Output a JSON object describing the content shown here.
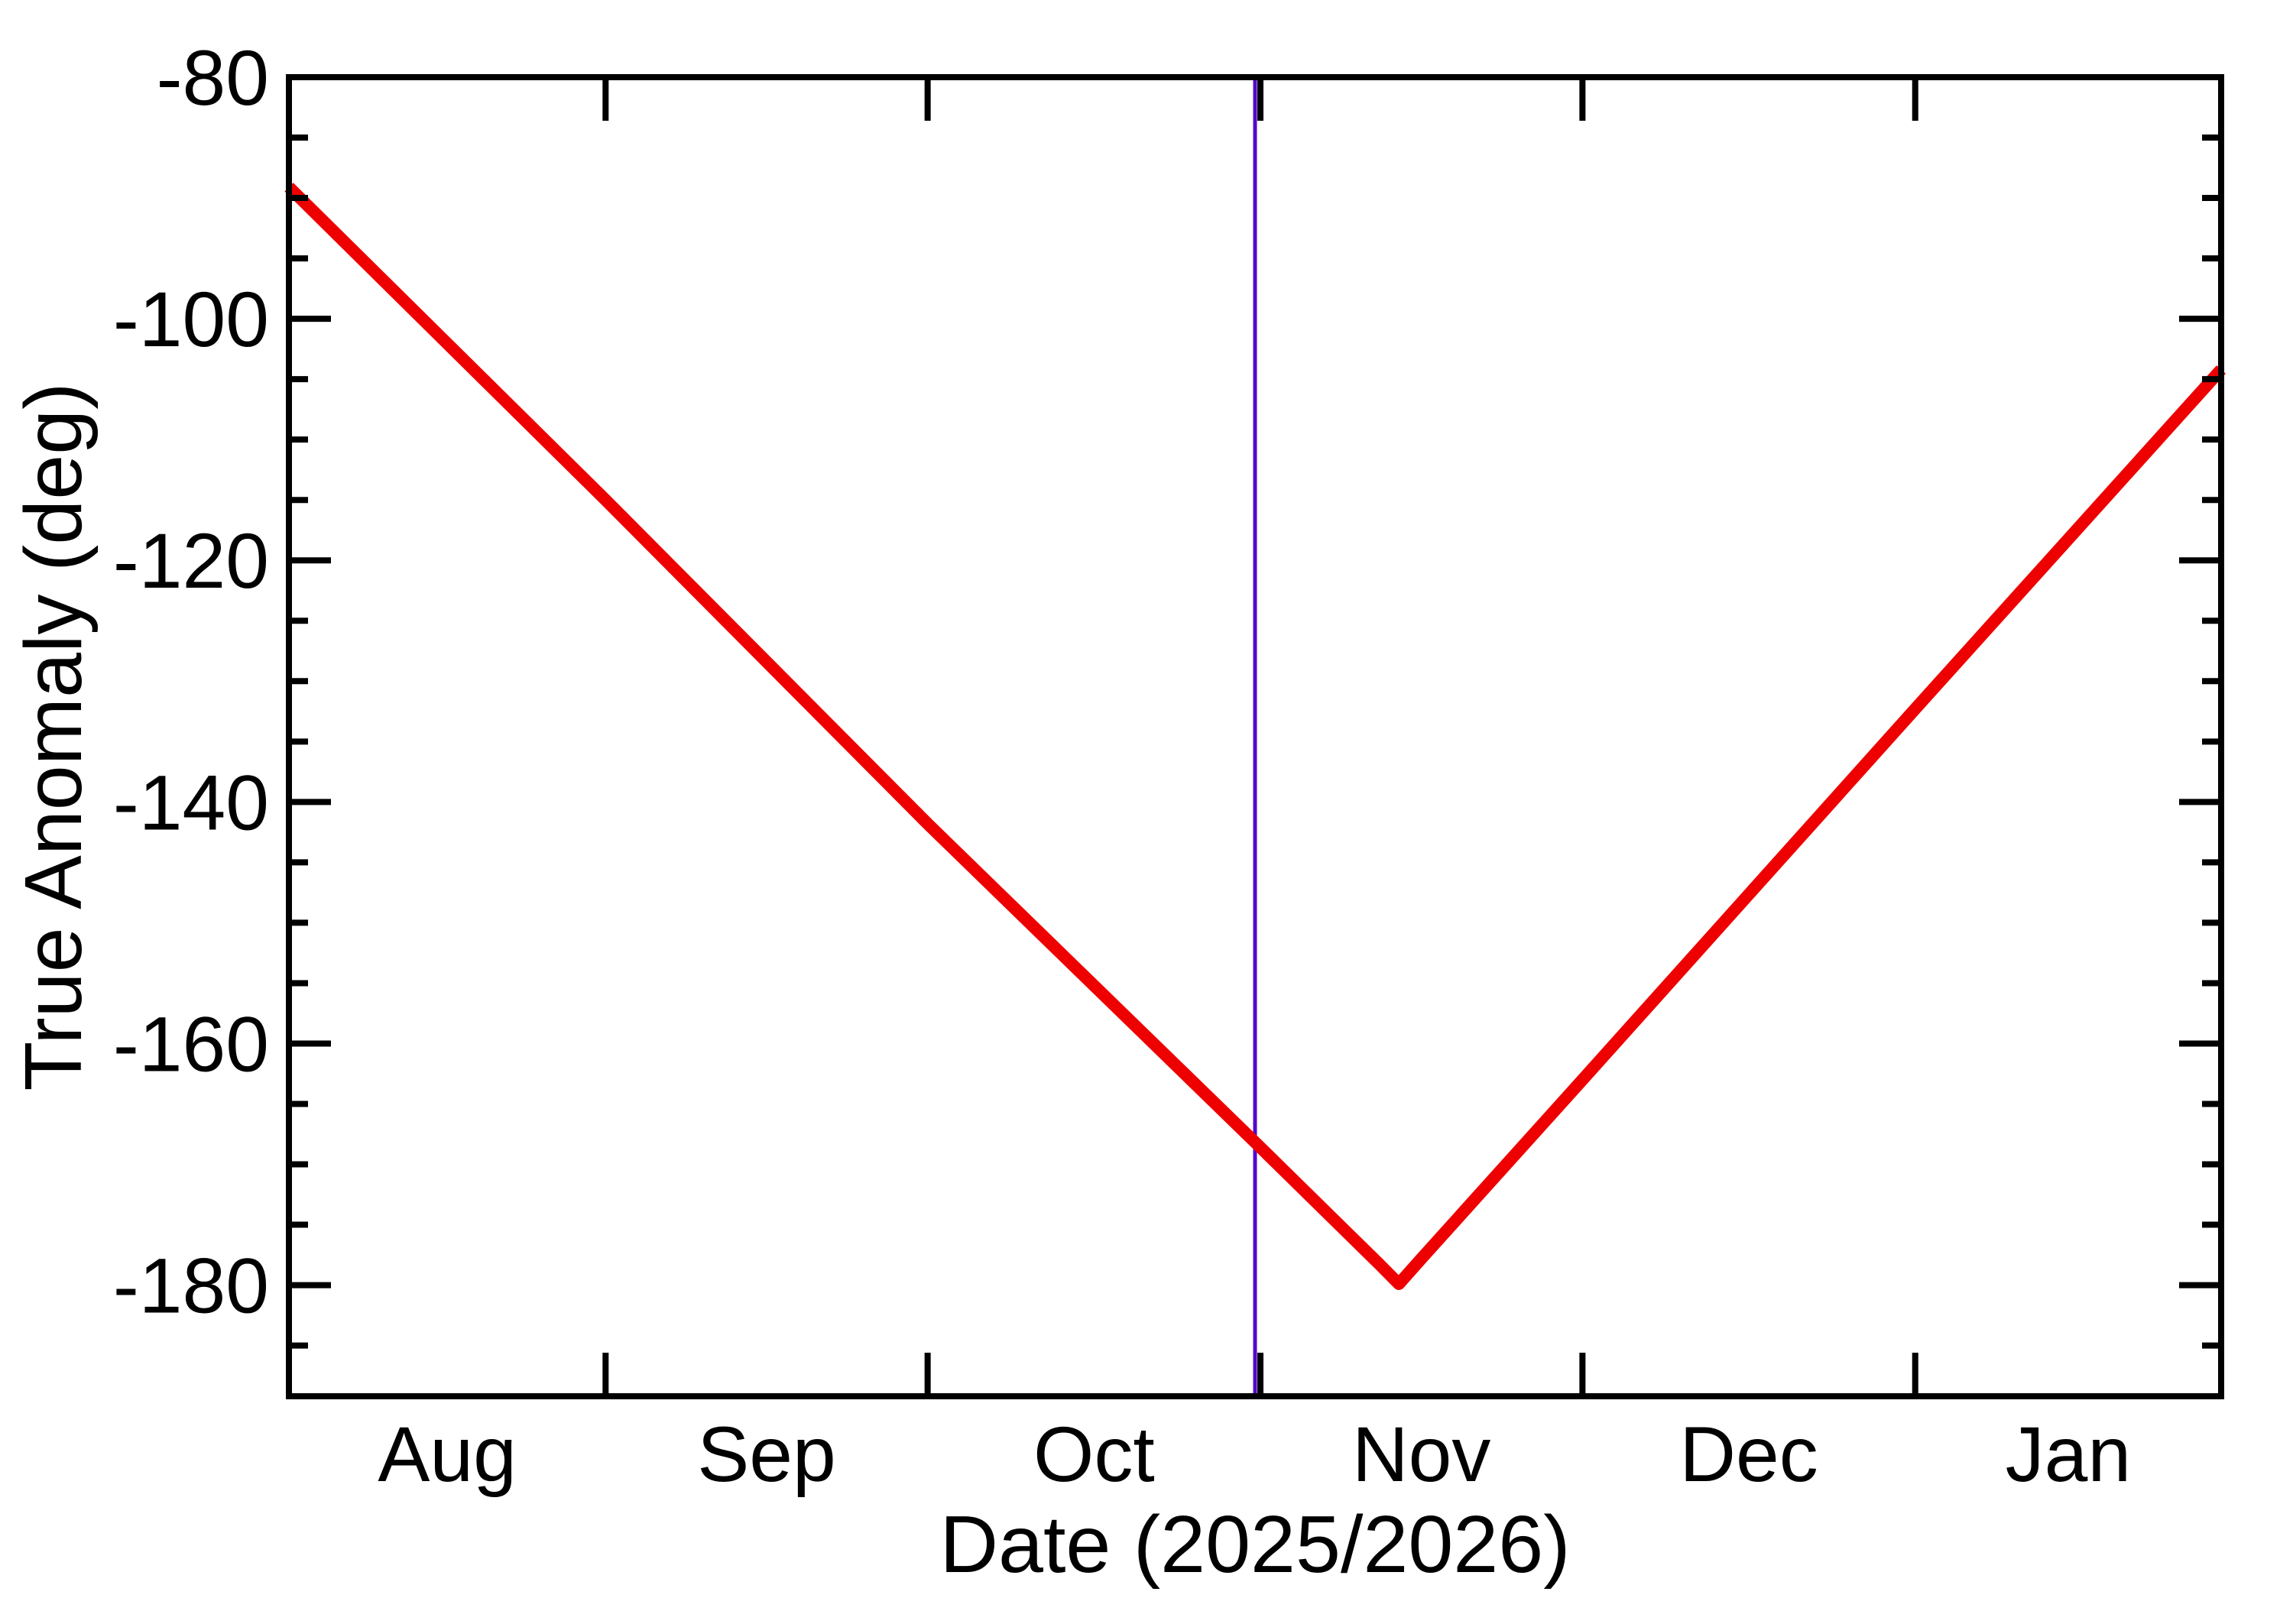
{
  "chart_data": {
    "type": "line",
    "title": "",
    "xlabel": "Date (2025/2026)",
    "ylabel": "True Anomaly (deg)",
    "x_epoch_day0": "2025-07-01",
    "x_range_days": [
      32.5,
      212.5
    ],
    "ylim": [
      -189.2,
      -80
    ],
    "y_major_ticks": [
      -80,
      -100,
      -120,
      -140,
      -160,
      -180
    ],
    "y_minor_step": 5,
    "x_boundary_tick_days": [
      62,
      92,
      123,
      153,
      184
    ],
    "x_boundary_tick_dates": [
      "2025-09-01",
      "2025-10-01",
      "2025-11-01",
      "2025-12-01",
      "2026-01-01"
    ],
    "x_month_labels": [
      {
        "text": "Aug",
        "day": 47.25
      },
      {
        "text": "Sep",
        "day": 77
      },
      {
        "text": "Oct",
        "day": 107.5
      },
      {
        "text": "Nov",
        "day": 138
      },
      {
        "text": "Dec",
        "day": 168.5
      },
      {
        "text": "Jan",
        "day": 198.25
      }
    ],
    "series": [
      {
        "name": "true-anomaly-curve",
        "color": "#ee0000",
        "stroke_width": 16,
        "points_day_value": [
          [
            32.5,
            -89.1
          ],
          [
            62,
            -115.0
          ],
          [
            92,
            -141.8
          ],
          [
            123,
            -168.6
          ],
          [
            134,
            -178.2
          ],
          [
            135.9,
            -179.9
          ],
          [
            138,
            -177.8
          ],
          [
            153,
            -163.0
          ],
          [
            184,
            -132.3
          ],
          [
            212.5,
            -104.2
          ]
        ],
        "shape_note": "V-shape: linear decrease to -180 deg near Nov 14 2025, then linear increase"
      }
    ],
    "markers": [
      {
        "name": "vertical-event-line",
        "day": 122.5,
        "approx_date": "2025-10-31",
        "color": "#5306ce",
        "stroke_width": 5
      }
    ],
    "legend": "none",
    "grid": false,
    "background": "#ffffff",
    "axis_color": "#000000"
  }
}
